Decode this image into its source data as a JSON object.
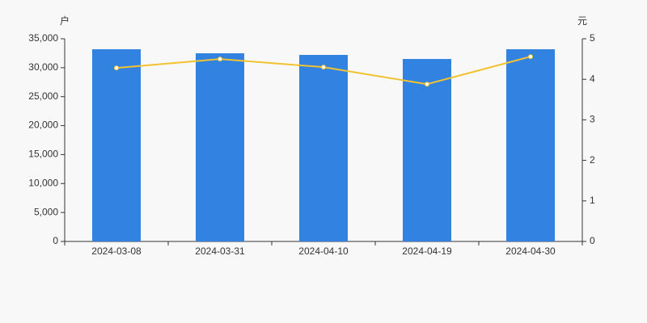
{
  "chart_data": {
    "type": "bar",
    "y_label": "户",
    "y2_label": "元",
    "categories": [
      "2024-03-08",
      "2024-03-31",
      "2024-04-10",
      "2024-04-19",
      "2024-04-30"
    ],
    "series": [
      {
        "type": "bar",
        "color": "#3282e2",
        "values": [
          33190,
          32490,
          32210,
          31510,
          33190
        ]
      },
      {
        "type": "line",
        "axis": "y2",
        "color": "#f2c230",
        "values": [
          4.28,
          4.5,
          4.3,
          3.88,
          4.56
        ]
      }
    ],
    "ylim": [
      0,
      35000
    ],
    "yticks": [
      0,
      {
        "value": 5000,
        "label": "5,000"
      },
      {
        "value": 10000,
        "label": "10,000"
      },
      {
        "value": 15000,
        "label": "15,000"
      },
      {
        "value": 20000,
        "label": "20,000"
      },
      {
        "value": 25000,
        "label": "25,000"
      },
      {
        "value": 30000,
        "label": "30,000"
      },
      {
        "value": 35000,
        "label": "35,000"
      }
    ],
    "y2lim": [
      0,
      5
    ],
    "y2ticks": [
      0,
      1,
      2,
      3,
      4,
      5
    ]
  }
}
